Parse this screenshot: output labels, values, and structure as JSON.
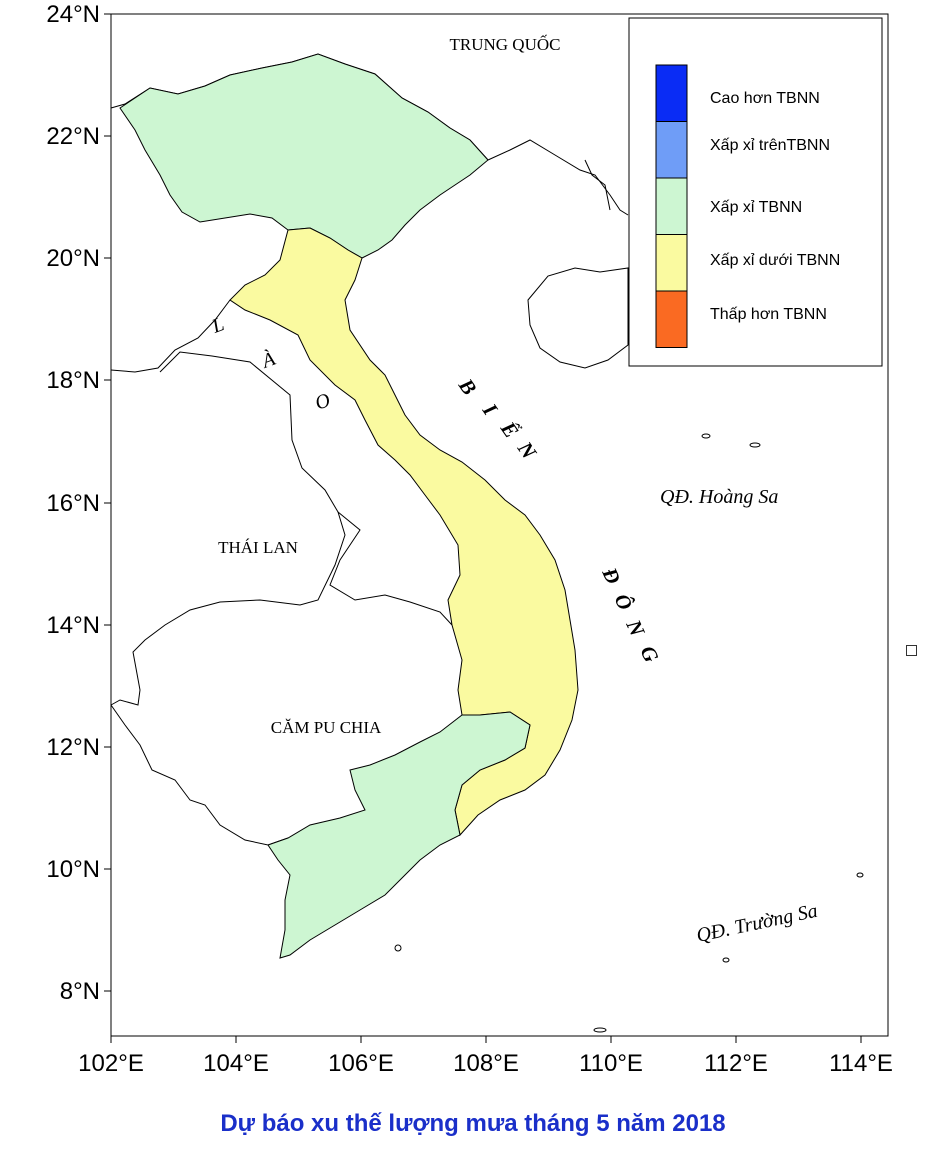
{
  "map": {
    "lat_labels": [
      "24°N",
      "22°N",
      "20°N",
      "18°N",
      "16°N",
      "14°N",
      "12°N",
      "10°N",
      "8°N"
    ],
    "lon_labels": [
      "102°E",
      "104°E",
      "106°E",
      "108°E",
      "110°E",
      "112°E",
      "114°E"
    ],
    "places": {
      "china": "TRUNG QUỐC",
      "laos_l": "L",
      "laos_a": "À",
      "laos_o": "O",
      "thailand": "THÁI LAN",
      "cambodia": "CĂM PU CHIA",
      "sea_b1": "B",
      "sea_b2": "I",
      "sea_b3": "Ể",
      "sea_b4": "N",
      "sea_d1": "Đ",
      "sea_d2": "Ô",
      "sea_d3": "N",
      "sea_d4": "G",
      "paracel": "QĐ. Hoàng Sa",
      "spratly": "QĐ. Trường Sa"
    }
  },
  "legend": [
    {
      "label": "Cao hơn TBNN",
      "color": "#0a2cf5"
    },
    {
      "label": "Xấp xỉ trênTBNN",
      "color": "#6f9df7"
    },
    {
      "label": "Xấp xỉ TBNN",
      "color": "#cdf6d2"
    },
    {
      "label": "Xấp xỉ dưới TBNN",
      "color": "#fafaa0"
    },
    {
      "label": "Thấp hơn TBNN",
      "color": "#fa6a22"
    }
  ],
  "caption": "Dự báo xu thế lượng mưa tháng 5 năm 2018",
  "caption_color": "#1a2fc9"
}
